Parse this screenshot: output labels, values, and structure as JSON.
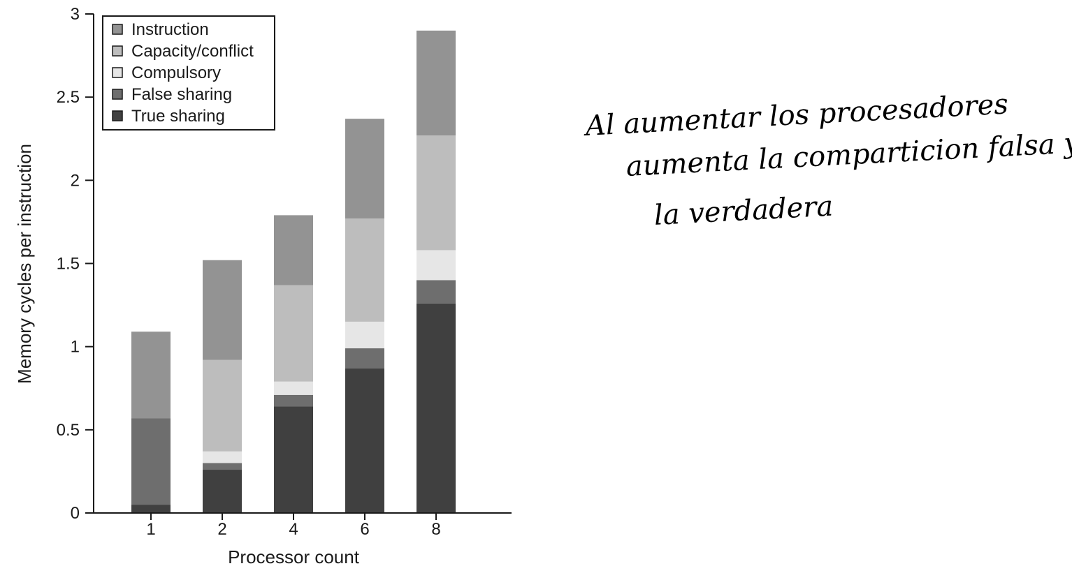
{
  "chart_data": {
    "type": "bar",
    "stacked": true,
    "categories": [
      "1",
      "2",
      "4",
      "6",
      "8"
    ],
    "series": [
      {
        "name": "True sharing",
        "color": "#404040",
        "values": [
          0.05,
          0.26,
          0.64,
          0.87,
          1.26
        ]
      },
      {
        "name": "False sharing",
        "color": "#6e6e6e",
        "values": [
          0.52,
          0.04,
          0.07,
          0.12,
          0.14
        ]
      },
      {
        "name": "Compulsory",
        "color": "#e6e6e6",
        "values": [
          0.0,
          0.07,
          0.08,
          0.16,
          0.18
        ]
      },
      {
        "name": "Capacity/conflict",
        "color": "#bdbdbd",
        "values": [
          0.0,
          0.55,
          0.58,
          0.62,
          0.69
        ]
      },
      {
        "name": "Instruction",
        "color": "#939393",
        "values": [
          0.52,
          0.6,
          0.42,
          0.6,
          0.63
        ]
      }
    ],
    "legend_order": [
      "Instruction",
      "Capacity/conflict",
      "Compulsory",
      "False sharing",
      "True sharing"
    ],
    "legend_position": "top-left",
    "xlabel": "Processor count",
    "ylabel": "Memory cycles per instruction",
    "ylim": [
      0,
      3
    ],
    "yticks": [
      "0",
      "0.5",
      "1",
      "1.5",
      "2",
      "2.5",
      "3"
    ],
    "grid": false
  },
  "annotation": {
    "lines": [
      "Al aumentar los procesadores",
      "aumenta la comparticion falsa y",
      "la verdadera"
    ]
  }
}
